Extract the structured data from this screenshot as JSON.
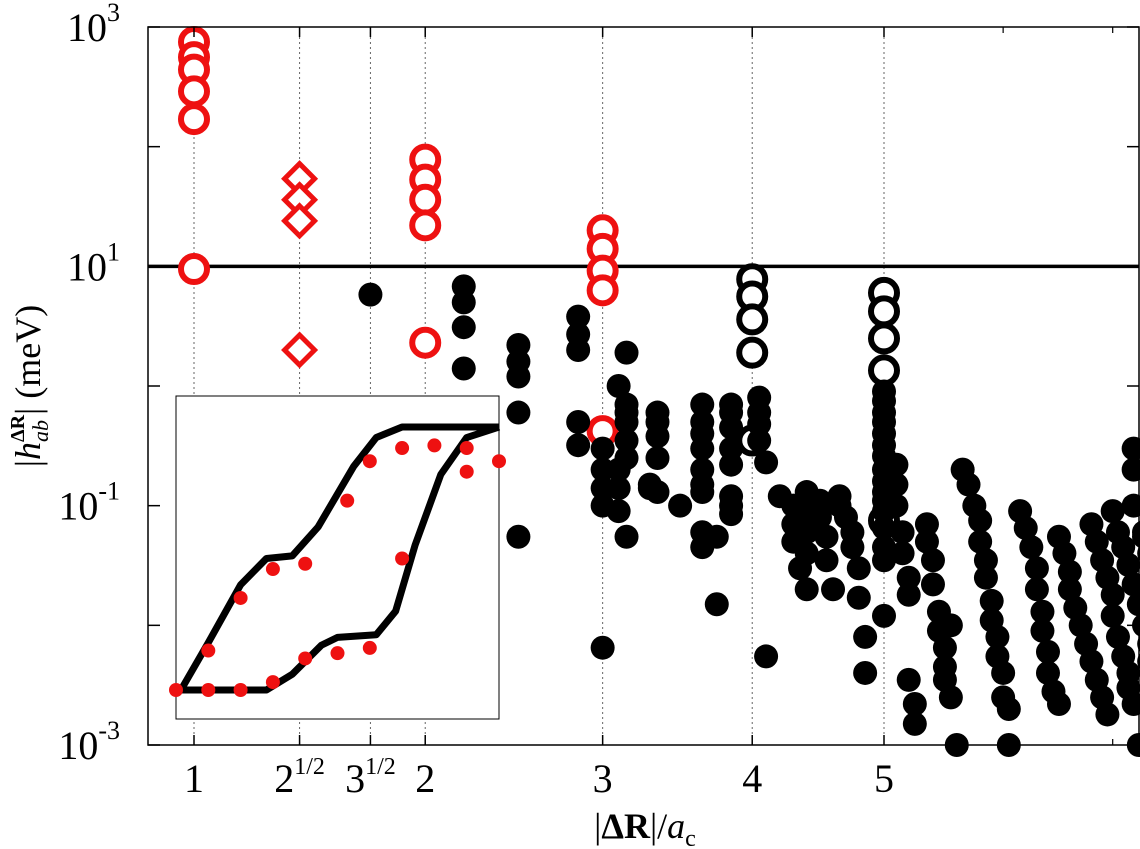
{
  "chart_data": {
    "type": "scatter",
    "xlabel": "|ΔR|/a_c",
    "ylabel": "|h_ab^ΔR| (meV)",
    "yscale": "log",
    "ylim": [
      0.001,
      1000
    ],
    "xscale": "sqrt",
    "xlim": [
      0.85,
      7.8
    ],
    "xticks": [
      {
        "value": 1,
        "base": "1",
        "sup": ""
      },
      {
        "value": 1.414,
        "base": "2",
        "sup": "1/2"
      },
      {
        "value": 1.732,
        "base": "3",
        "sup": "1/2"
      },
      {
        "value": 2,
        "base": "2",
        "sup": ""
      },
      {
        "value": 3,
        "base": "3",
        "sup": ""
      },
      {
        "value": 4,
        "base": "4",
        "sup": ""
      },
      {
        "value": 5,
        "base": "5",
        "sup": ""
      }
    ],
    "yticks": [
      {
        "value": 0.001,
        "base": "10",
        "sup": "-3"
      },
      {
        "value": 0.1,
        "base": "10",
        "sup": "-1"
      },
      {
        "value": 10,
        "base": "10",
        "sup": "1"
      },
      {
        "value": 1000,
        "base": "10",
        "sup": "3"
      }
    ],
    "grid": "vertical dotted at x ticks",
    "reference_line": {
      "y": 10,
      "color": "#000000"
    },
    "colors": {
      "red": "#ee1111",
      "black": "#000000"
    },
    "series": [
      {
        "marker": "open-circle",
        "color": "#ee1111",
        "points": [
          [
            1,
            750
          ],
          [
            1,
            560
          ],
          [
            1,
            440
          ],
          [
            1,
            290
          ],
          [
            1,
            170
          ],
          [
            1,
            9.5
          ],
          [
            2,
            78
          ],
          [
            2,
            53
          ],
          [
            2,
            36
          ],
          [
            2,
            22
          ],
          [
            2,
            2.3
          ],
          [
            3,
            20
          ],
          [
            3,
            14
          ],
          [
            3,
            9.2
          ],
          [
            3,
            6.3
          ],
          [
            3,
            0.42
          ]
        ]
      },
      {
        "marker": "open-diamond",
        "color": "#ee1111",
        "points": [
          [
            1.414,
            54
          ],
          [
            1.414,
            36
          ],
          [
            1.414,
            24
          ],
          [
            1.414,
            2.0
          ]
        ]
      },
      {
        "marker": "open-circle",
        "color": "#000000",
        "points": [
          [
            4,
            7.8
          ],
          [
            4,
            5.6
          ],
          [
            4,
            3.6
          ],
          [
            4,
            1.9
          ],
          [
            4,
            0.35
          ],
          [
            5,
            6.0
          ],
          [
            5,
            4.2
          ],
          [
            5,
            2.5
          ],
          [
            5,
            1.35
          ],
          [
            5,
            0.075
          ]
        ]
      },
      {
        "marker": "filled-circle",
        "color": "#000000",
        "points": [
          [
            1.732,
            5.8
          ],
          [
            2.2,
            6.8
          ],
          [
            2.2,
            5.0
          ],
          [
            2.2,
            3.1
          ],
          [
            2.2,
            1.4
          ],
          [
            2.2,
            0.28
          ],
          [
            2.2,
            0.08
          ],
          [
            2.5,
            2.2
          ],
          [
            2.5,
            1.6
          ],
          [
            2.5,
            1.2
          ],
          [
            2.5,
            0.6
          ],
          [
            2.5,
            0.055
          ],
          [
            2.85,
            3.8
          ],
          [
            2.85,
            2.7
          ],
          [
            2.85,
            2.0
          ],
          [
            2.85,
            0.5
          ],
          [
            2.85,
            0.32
          ],
          [
            3,
            0.3
          ],
          [
            3,
            0.2
          ],
          [
            3,
            0.14
          ],
          [
            3,
            0.1
          ],
          [
            3,
            0.0065
          ],
          [
            3.1,
            1.0
          ],
          [
            3.1,
            0.2
          ],
          [
            3.1,
            0.14
          ],
          [
            3.1,
            0.09
          ],
          [
            3.15,
            1.9
          ],
          [
            3.15,
            0.7
          ],
          [
            3.15,
            0.6
          ],
          [
            3.15,
            0.5
          ],
          [
            3.15,
            0.35
          ],
          [
            3.15,
            0.25
          ],
          [
            3.15,
            0.055
          ],
          [
            3.3,
            0.15
          ],
          [
            3.3,
            0.14
          ],
          [
            3.35,
            0.6
          ],
          [
            3.35,
            0.5
          ],
          [
            3.35,
            0.38
          ],
          [
            3.35,
            0.25
          ],
          [
            3.35,
            0.13
          ],
          [
            3.5,
            0.1
          ],
          [
            3.65,
            0.7
          ],
          [
            3.65,
            0.5
          ],
          [
            3.65,
            0.4
          ],
          [
            3.65,
            0.3
          ],
          [
            3.65,
            0.2
          ],
          [
            3.65,
            0.15
          ],
          [
            3.65,
            0.13
          ],
          [
            3.65,
            0.06
          ],
          [
            3.65,
            0.045
          ],
          [
            3.75,
            0.055
          ],
          [
            3.75,
            0.015
          ],
          [
            3.85,
            0.7
          ],
          [
            3.85,
            0.6
          ],
          [
            3.85,
            0.45
          ],
          [
            3.85,
            0.3
          ],
          [
            3.85,
            0.22
          ],
          [
            3.85,
            0.12
          ],
          [
            3.85,
            0.1
          ],
          [
            3.85,
            0.085
          ],
          [
            4.05,
            0.8
          ],
          [
            4.05,
            0.6
          ],
          [
            4.05,
            0.48
          ],
          [
            4.05,
            0.35
          ],
          [
            4.1,
            0.23
          ],
          [
            4.1,
            0.0055
          ],
          [
            4.2,
            0.12
          ],
          [
            4.3,
            0.1
          ],
          [
            4.3,
            0.07
          ],
          [
            4.3,
            0.05
          ],
          [
            4.35,
            0.03
          ],
          [
            4.4,
            0.13
          ],
          [
            4.4,
            0.09
          ],
          [
            4.4,
            0.06
          ],
          [
            4.4,
            0.04
          ],
          [
            4.4,
            0.02
          ],
          [
            4.5,
            0.11
          ],
          [
            4.5,
            0.08
          ],
          [
            4.55,
            0.055
          ],
          [
            4.55,
            0.035
          ],
          [
            4.6,
            0.02
          ],
          [
            4.65,
            0.12
          ],
          [
            4.65,
            0.1
          ],
          [
            4.7,
            0.08
          ],
          [
            4.75,
            0.06
          ],
          [
            4.75,
            0.045
          ],
          [
            4.8,
            0.03
          ],
          [
            4.8,
            0.017
          ],
          [
            4.85,
            0.008
          ],
          [
            4.85,
            0.004
          ],
          [
            5,
            0.9
          ],
          [
            5,
            0.75
          ],
          [
            5,
            0.6
          ],
          [
            5,
            0.5
          ],
          [
            5,
            0.4
          ],
          [
            5,
            0.32
          ],
          [
            5,
            0.26
          ],
          [
            5,
            0.2
          ],
          [
            5,
            0.16
          ],
          [
            5,
            0.13
          ],
          [
            5,
            0.11
          ],
          [
            5,
            0.09
          ],
          [
            5,
            0.065
          ],
          [
            5,
            0.045
          ],
          [
            5,
            0.035
          ],
          [
            5,
            0.012
          ],
          [
            5.1,
            0.22
          ],
          [
            5.1,
            0.15
          ],
          [
            5.1,
            0.1
          ],
          [
            5.15,
            0.06
          ],
          [
            5.15,
            0.04
          ],
          [
            5.2,
            0.025
          ],
          [
            5.2,
            0.018
          ],
          [
            5.2,
            0.0035
          ],
          [
            5.25,
            0.0022
          ],
          [
            5.25,
            0.0015
          ],
          [
            5.35,
            0.07
          ],
          [
            5.35,
            0.05
          ],
          [
            5.4,
            0.035
          ],
          [
            5.4,
            0.022
          ],
          [
            5.45,
            0.013
          ],
          [
            5.45,
            0.009
          ],
          [
            5.5,
            0.0065
          ],
          [
            5.5,
            0.0045
          ],
          [
            5.5,
            0.0035
          ],
          [
            5.55,
            0.01
          ],
          [
            5.55,
            0.0025
          ],
          [
            5.6,
            0.001
          ],
          [
            5.65,
            0.2
          ],
          [
            5.7,
            0.15
          ],
          [
            5.75,
            0.1
          ],
          [
            5.8,
            0.075
          ],
          [
            5.8,
            0.05
          ],
          [
            5.85,
            0.035
          ],
          [
            5.85,
            0.025
          ],
          [
            5.9,
            0.016
          ],
          [
            5.9,
            0.011
          ],
          [
            5.95,
            0.008
          ],
          [
            5.95,
            0.0055
          ],
          [
            6.0,
            0.004
          ],
          [
            6.0,
            0.0025
          ],
          [
            6.05,
            0.002
          ],
          [
            6.05,
            0.001
          ],
          [
            6.15,
            0.09
          ],
          [
            6.2,
            0.065
          ],
          [
            6.25,
            0.045
          ],
          [
            6.3,
            0.03
          ],
          [
            6.3,
            0.02
          ],
          [
            6.35,
            0.013
          ],
          [
            6.35,
            0.009
          ],
          [
            6.4,
            0.006
          ],
          [
            6.4,
            0.004
          ],
          [
            6.45,
            0.0028
          ],
          [
            6.5,
            0.0022
          ],
          [
            6.5,
            0.055
          ],
          [
            6.55,
            0.04
          ],
          [
            6.6,
            0.028
          ],
          [
            6.6,
            0.02
          ],
          [
            6.65,
            0.014
          ],
          [
            6.7,
            0.01
          ],
          [
            6.75,
            0.007
          ],
          [
            6.8,
            0.005
          ],
          [
            6.85,
            0.0035
          ],
          [
            6.9,
            0.0025
          ],
          [
            6.95,
            0.0018
          ],
          [
            6.8,
            0.07
          ],
          [
            6.85,
            0.05
          ],
          [
            6.9,
            0.035
          ],
          [
            6.95,
            0.025
          ],
          [
            7.0,
            0.018
          ],
          [
            7.0,
            0.012
          ],
          [
            7.05,
            0.008
          ],
          [
            7.1,
            0.0055
          ],
          [
            7.15,
            0.004
          ],
          [
            7.15,
            0.003
          ],
          [
            7.2,
            0.0022
          ],
          [
            7.0,
            0.09
          ],
          [
            7.05,
            0.06
          ],
          [
            7.1,
            0.045
          ],
          [
            7.15,
            0.032
          ],
          [
            7.2,
            0.022
          ],
          [
            7.25,
            0.015
          ],
          [
            7.3,
            0.01
          ],
          [
            7.35,
            0.007
          ],
          [
            7.35,
            0.005
          ],
          [
            7.4,
            0.0035
          ],
          [
            7.45,
            0.0025
          ],
          [
            7.3,
            0.055
          ],
          [
            7.35,
            0.04
          ],
          [
            7.4,
            0.028
          ],
          [
            7.45,
            0.02
          ],
          [
            7.5,
            0.014
          ],
          [
            7.5,
            0.01
          ],
          [
            7.55,
            0.007
          ],
          [
            7.2,
            0.3
          ],
          [
            7.2,
            0.2
          ],
          [
            7.2,
            0.1
          ],
          [
            7.3,
            0.06
          ],
          [
            7.4,
            0.04
          ],
          [
            7.45,
            0.003
          ],
          [
            7.25,
            0.001
          ],
          [
            7.55,
            0.1
          ],
          [
            7.6,
            0.07
          ],
          [
            7.65,
            0.05
          ],
          [
            7.65,
            0.035
          ],
          [
            7.65,
            0.025
          ],
          [
            7.6,
            0.002
          ],
          [
            7.7,
            0.085
          ]
        ]
      }
    ],
    "inset": {
      "curves": [
        [
          [
            0,
            0
          ],
          [
            0.28,
            0
          ],
          [
            0.36,
            0.06
          ],
          [
            0.45,
            0.17
          ],
          [
            0.5,
            0.2
          ],
          [
            0.62,
            0.21
          ],
          [
            0.68,
            0.3
          ],
          [
            0.74,
            0.55
          ],
          [
            0.82,
            0.82
          ],
          [
            0.9,
            0.96
          ],
          [
            1,
            1
          ]
        ],
        [
          [
            0,
            0
          ],
          [
            0.02,
            0.01
          ],
          [
            0.1,
            0.18
          ],
          [
            0.2,
            0.4
          ],
          [
            0.28,
            0.5
          ],
          [
            0.36,
            0.51
          ],
          [
            0.44,
            0.62
          ],
          [
            0.55,
            0.85
          ],
          [
            0.62,
            0.96
          ],
          [
            0.7,
            1
          ],
          [
            1,
            1
          ]
        ]
      ],
      "points": [
        [
          0,
          0
        ],
        [
          0.1,
          0
        ],
        [
          0.2,
          0
        ],
        [
          0.3,
          0.03
        ],
        [
          0.4,
          0.12
        ],
        [
          0.5,
          0.14
        ],
        [
          0.6,
          0.16
        ],
        [
          0.7,
          0.5
        ],
        [
          0.9,
          0.83
        ],
        [
          1,
          0.87
        ],
        [
          0.1,
          0.15
        ],
        [
          0.2,
          0.35
        ],
        [
          0.3,
          0.46
        ],
        [
          0.4,
          0.48
        ],
        [
          0.53,
          0.72
        ],
        [
          0.6,
          0.87
        ],
        [
          0.7,
          0.92
        ],
        [
          0.8,
          0.93
        ],
        [
          0.9,
          0.92
        ]
      ]
    }
  }
}
